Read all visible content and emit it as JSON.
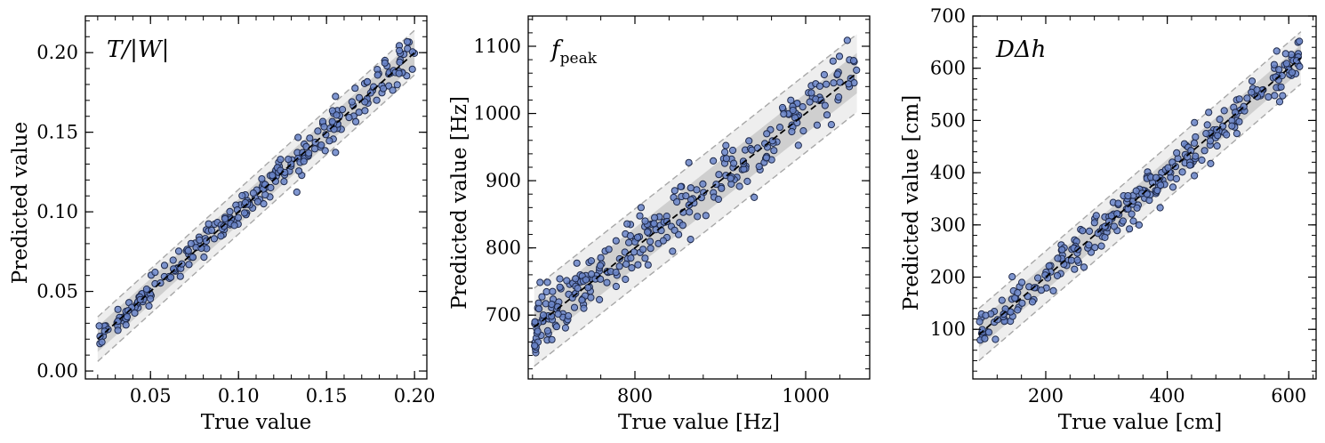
{
  "chart_data": [
    {
      "type": "scatter",
      "title": "T/|W|",
      "xlabel": "True value",
      "ylabel": "Predicted value",
      "xlim": [
        0.013,
        0.207
      ],
      "ylim": [
        -0.005,
        0.223
      ],
      "x_ticks": [
        0.05,
        0.1,
        0.15,
        0.2
      ],
      "x_tick_labels": [
        "0.05",
        "0.10",
        "0.15",
        "0.20"
      ],
      "y_ticks": [
        0.0,
        0.05,
        0.1,
        0.15,
        0.2
      ],
      "y_tick_labels": [
        "0.00",
        "0.05",
        "0.10",
        "0.15",
        "0.20"
      ],
      "identity_line": [
        [
          0.02,
          0.02
        ],
        [
          0.2,
          0.2
        ]
      ],
      "inner_band_halfwidth": 0.008,
      "outer_band_halfwidth": 0.014,
      "point_color": "#6a85c9",
      "point_edge_color": "#1f2a4a",
      "n_points": 270,
      "x_range": [
        0.02,
        0.2
      ],
      "noise_sd": 0.005,
      "random_seed": 11
    },
    {
      "type": "scatter",
      "title": "f_peak",
      "title_main": "f",
      "title_sub": "peak",
      "xlabel": "True value [Hz]",
      "ylabel": "Predicted value [Hz]",
      "xlim": [
        675,
        1075
      ],
      "ylim": [
        605,
        1145
      ],
      "x_ticks": [
        800,
        1000
      ],
      "x_tick_labels": [
        "800",
        "1000"
      ],
      "y_ticks": [
        700,
        800,
        900,
        1000,
        1100
      ],
      "y_tick_labels": [
        "700",
        "800",
        "900",
        "1000",
        "1100"
      ],
      "identity_line": [
        [
          682,
          682
        ],
        [
          1060,
          1060
        ]
      ],
      "inner_band_halfwidth": 30,
      "outer_band_halfwidth": 58,
      "point_color": "#6a85c9",
      "point_edge_color": "#1f2a4a",
      "n_points": 300,
      "x_range": [
        682,
        1060
      ],
      "noise_sd": 22,
      "random_seed": 23
    },
    {
      "type": "scatter",
      "title": "DΔh",
      "xlabel": "True value [cm]",
      "ylabel": "Predicted value [cm]",
      "xlim": [
        80,
        645
      ],
      "ylim": [
        5,
        700
      ],
      "x_ticks": [
        200,
        400,
        600
      ],
      "x_tick_labels": [
        "200",
        "400",
        "600"
      ],
      "y_ticks": [
        100,
        200,
        300,
        400,
        500,
        600,
        700
      ],
      "y_tick_labels": [
        "100",
        "200",
        "300",
        "400",
        "500",
        "600",
        "700"
      ],
      "identity_line": [
        [
          90,
          90
        ],
        [
          620,
          620
        ]
      ],
      "inner_band_halfwidth": 25,
      "outer_band_halfwidth": 50,
      "point_color": "#6a85c9",
      "point_edge_color": "#1f2a4a",
      "n_points": 280,
      "x_range": [
        90,
        620
      ],
      "noise_sd": 20,
      "random_seed": 37
    }
  ]
}
